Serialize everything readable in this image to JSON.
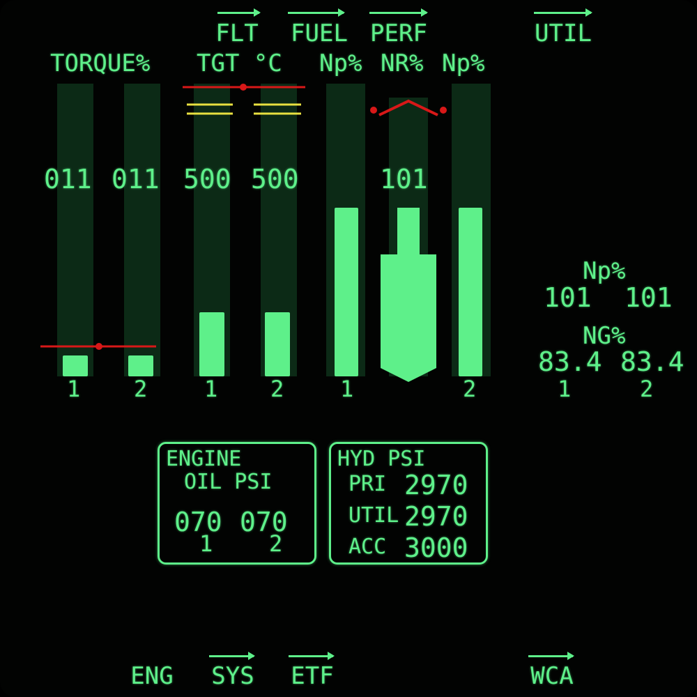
{
  "softkeys_top": {
    "flt": "FLT",
    "fuel": "FUEL",
    "perf": "PERF",
    "util": "UTIL"
  },
  "headers": {
    "torque": "TORQUE%",
    "tgt": "TGT °C",
    "np_left": "Np%",
    "nr": "NR%",
    "np_right": "Np%"
  },
  "gauges": {
    "torque_1": {
      "readout": "011",
      "label": "1"
    },
    "torque_2": {
      "readout": "011",
      "label": "2"
    },
    "tgt_1": {
      "readout": "500",
      "label": "1"
    },
    "tgt_2": {
      "readout": "500",
      "label": "2"
    },
    "np_1": {
      "label": "1"
    },
    "nr": {
      "readout": "101"
    },
    "np_2": {
      "label": "2"
    }
  },
  "right_panel": {
    "np_title": "Np%",
    "np_1": "101",
    "np_2": "101",
    "ng_title": "NG%",
    "ng_1": "83.4",
    "ng_2": "83.4",
    "eng_1": "1",
    "eng_2": "2"
  },
  "engine_oil": {
    "title_1": "ENGINE",
    "title_2": "OIL PSI",
    "value_1": "070",
    "value_2": "070",
    "label_1": "1",
    "label_2": "2"
  },
  "hyd": {
    "title": "HYD PSI",
    "pri_label": "PRI",
    "pri_value": "2970",
    "util_label": "UTIL",
    "util_value": "2970",
    "acc_label": "ACC",
    "acc_value": "3000"
  },
  "softkeys_bottom": {
    "eng": "ENG",
    "sys": "SYS",
    "etf": "ETF",
    "wca": "WCA"
  },
  "colors": {
    "green": "#5ef08a",
    "dim_green": "#0c2a16",
    "red": "#d81818",
    "yellow": "#e8e040"
  }
}
